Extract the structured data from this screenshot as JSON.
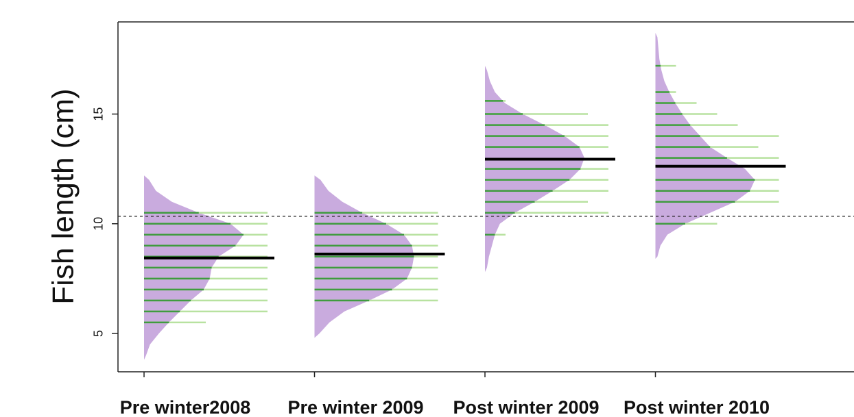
{
  "chart_data": {
    "type": "bean",
    "ylabel": "Fish length (cm)",
    "categories": [
      "Pre winter2008",
      "Pre winter 2009",
      "Post winter 2009",
      "Post winter 2010"
    ],
    "ylim": [
      3.25,
      19.2
    ],
    "yticks": [
      5,
      10,
      15
    ],
    "reference_line": 10.34,
    "density_color": "#c9abde",
    "line_color": "#b8e2a0",
    "line_inner_color": "#3f9b3f",
    "mean_color": "#000000",
    "groups": [
      {
        "mean": 8.44,
        "density_y": [
          3.8,
          4,
          4.5,
          5,
          5.5,
          6,
          6.5,
          7,
          7.5,
          8,
          8.5,
          9,
          9.5,
          10,
          10.5,
          11,
          11.5,
          12,
          12.2
        ],
        "density": [
          0,
          0.02,
          0.06,
          0.15,
          0.25,
          0.36,
          0.47,
          0.6,
          0.66,
          0.68,
          0.75,
          0.92,
          1.0,
          0.87,
          0.55,
          0.28,
          0.12,
          0.05,
          0
        ],
        "lines": [
          5.5,
          6,
          6.5,
          7,
          7.5,
          8,
          8.5,
          9,
          9.5,
          10,
          10.5
        ],
        "counts": [
          3,
          6,
          6,
          6,
          6,
          6,
          6,
          6,
          6,
          6,
          6
        ]
      },
      {
        "mean": 8.62,
        "density_y": [
          4.8,
          5,
          5.5,
          6,
          6.5,
          7,
          7.5,
          8,
          8.5,
          9,
          9.5,
          10,
          10.5,
          11,
          11.5,
          12,
          12.2
        ],
        "density": [
          0,
          0.05,
          0.15,
          0.3,
          0.55,
          0.78,
          0.93,
          0.98,
          1.0,
          0.98,
          0.9,
          0.72,
          0.48,
          0.28,
          0.14,
          0.06,
          0
        ],
        "lines": [
          6.5,
          7,
          7.5,
          8,
          8.5,
          9,
          9.5,
          10,
          10.5
        ],
        "counts": [
          6,
          6,
          6,
          6,
          6,
          6,
          6,
          6,
          6
        ]
      },
      {
        "mean": 12.94,
        "density_y": [
          7.8,
          8,
          8.5,
          9,
          9.5,
          10,
          10.5,
          11,
          11.5,
          12,
          12.5,
          13,
          13.5,
          14,
          14.5,
          15,
          15.5,
          16,
          16.5,
          17,
          17.2
        ],
        "density": [
          0,
          0.02,
          0.04,
          0.07,
          0.1,
          0.15,
          0.3,
          0.5,
          0.68,
          0.85,
          0.96,
          1.0,
          0.95,
          0.8,
          0.6,
          0.38,
          0.2,
          0.1,
          0.05,
          0.02,
          0
        ],
        "lines": [
          9.5,
          10.5,
          11,
          11.5,
          12,
          12.5,
          13.5,
          14,
          14.5,
          15,
          15.6
        ],
        "counts": [
          1,
          6,
          5,
          6,
          6,
          6,
          6,
          6,
          6,
          5,
          1
        ]
      },
      {
        "mean": 12.62,
        "density_y": [
          8.4,
          8.5,
          9,
          9.5,
          10,
          10.5,
          11,
          11.5,
          12,
          12.5,
          13,
          13.5,
          14,
          14.5,
          15,
          15.5,
          16,
          16.5,
          17,
          17.5,
          18,
          18.5,
          18.7
        ],
        "density": [
          0,
          0.02,
          0.05,
          0.12,
          0.3,
          0.55,
          0.8,
          0.95,
          1.0,
          0.9,
          0.72,
          0.55,
          0.45,
          0.35,
          0.27,
          0.2,
          0.14,
          0.09,
          0.06,
          0.04,
          0.03,
          0.02,
          0
        ],
        "lines": [
          10,
          11,
          11.5,
          12,
          13,
          13.5,
          14,
          14.5,
          15,
          15.5,
          16,
          17.2
        ],
        "counts": [
          3,
          6,
          6,
          6,
          6,
          5,
          6,
          4,
          3,
          2,
          1,
          1
        ]
      }
    ]
  }
}
